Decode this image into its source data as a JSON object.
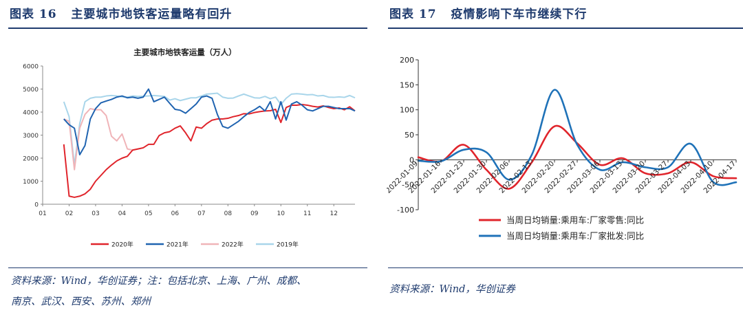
{
  "chart_data": [
    {
      "type": "line",
      "figure_label": "图表 16",
      "figure_title": "主要城市地铁客运量略有回升",
      "title": "主要城市地铁客运量（万人）",
      "xlabel": "",
      "ylabel": "",
      "x_ticks": [
        "01",
        "02",
        "03",
        "04",
        "05",
        "06",
        "07",
        "08",
        "09",
        "10",
        "11",
        "12"
      ],
      "y_ticks": [
        "0",
        "1000",
        "2000",
        "3000",
        "4000",
        "5000",
        "6000"
      ],
      "ylim": [
        0,
        6000
      ],
      "xlim": [
        1,
        12.8
      ],
      "legend_position": "bottom",
      "series": [
        {
          "name": "2020年",
          "color": "#e0242b",
          "x": [
            1.8,
            2.0,
            2.2,
            2.4,
            2.6,
            2.8,
            3.0,
            3.2,
            3.4,
            3.6,
            3.8,
            4.0,
            4.2,
            4.4,
            4.6,
            4.8,
            5.0,
            5.2,
            5.4,
            5.6,
            5.8,
            6.0,
            6.2,
            6.4,
            6.6,
            6.8,
            7.0,
            7.2,
            7.4,
            7.6,
            7.8,
            8.0,
            8.2,
            8.4,
            8.6,
            8.8,
            9.0,
            9.2,
            9.4,
            9.6,
            9.8,
            10.0,
            10.2,
            10.4,
            10.6,
            10.8,
            11.0,
            11.2,
            11.4,
            11.6,
            11.8,
            12.0,
            12.2,
            12.4,
            12.6,
            12.8
          ],
          "values": [
            2600,
            350,
            300,
            350,
            450,
            650,
            1000,
            1250,
            1500,
            1700,
            1880,
            2000,
            2080,
            2350,
            2400,
            2450,
            2600,
            2600,
            2980,
            3100,
            3150,
            3300,
            3400,
            3100,
            2750,
            3350,
            3300,
            3500,
            3650,
            3700,
            3700,
            3730,
            3800,
            3850,
            3930,
            3920,
            3980,
            4020,
            4050,
            4060,
            4120,
            3550,
            4200,
            4300,
            4300,
            4330,
            4300,
            4250,
            4220,
            4270,
            4200,
            4150,
            4180,
            4100,
            4230,
            4050
          ]
        },
        {
          "name": "2021年",
          "color": "#1f63b0",
          "x": [
            1.8,
            2.0,
            2.2,
            2.4,
            2.6,
            2.8,
            3.0,
            3.2,
            3.4,
            3.6,
            3.8,
            4.0,
            4.2,
            4.4,
            4.6,
            4.8,
            5.0,
            5.2,
            5.4,
            5.6,
            5.8,
            6.0,
            6.2,
            6.4,
            6.6,
            6.8,
            7.0,
            7.2,
            7.4,
            7.6,
            7.8,
            8.0,
            8.2,
            8.4,
            8.6,
            8.8,
            9.0,
            9.2,
            9.4,
            9.6,
            9.8,
            10.0,
            10.2,
            10.4,
            10.6,
            10.8,
            11.0,
            11.2,
            11.4,
            11.6,
            11.8,
            12.0,
            12.2,
            12.4,
            12.6,
            12.8
          ],
          "values": [
            3700,
            3450,
            3300,
            2150,
            2550,
            3700,
            4150,
            4400,
            4480,
            4550,
            4650,
            4700,
            4620,
            4650,
            4600,
            4650,
            5000,
            4450,
            4550,
            4650,
            4380,
            4120,
            4080,
            3950,
            4150,
            4350,
            4650,
            4700,
            4600,
            3900,
            3380,
            3300,
            3450,
            3600,
            3800,
            3980,
            4100,
            4250,
            4050,
            4450,
            3700,
            4450,
            3650,
            4350,
            4450,
            4300,
            4100,
            4050,
            4150,
            4250,
            4250,
            4200,
            4150,
            4150,
            4150,
            4050
          ]
        },
        {
          "name": "2022年",
          "color": "#f0b4b8",
          "x": [
            1.8,
            2.0,
            2.2,
            2.4,
            2.6,
            2.8,
            3.0,
            3.2,
            3.4,
            3.6,
            3.8,
            4.0,
            4.2,
            4.4,
            4.6,
            4.8
          ],
          "values": [
            3700,
            3600,
            1500,
            3300,
            3900,
            4150,
            4100,
            4100,
            3850,
            2950,
            2750,
            3050,
            2400,
            2350,
            2400,
            2450
          ]
        },
        {
          "name": "2019年",
          "color": "#a8d5ea",
          "x": [
            1.8,
            2.0,
            2.2,
            2.4,
            2.6,
            2.8,
            3.0,
            3.2,
            3.4,
            3.6,
            3.8,
            4.0,
            4.2,
            4.4,
            4.6,
            4.8,
            5.0,
            5.2,
            5.4,
            5.6,
            5.8,
            6.0,
            6.2,
            6.4,
            6.6,
            6.8,
            7.0,
            7.2,
            7.4,
            7.6,
            7.8,
            8.0,
            8.2,
            8.4,
            8.6,
            8.8,
            9.0,
            9.2,
            9.4,
            9.6,
            9.8,
            10.0,
            10.2,
            10.4,
            10.6,
            10.8,
            11.0,
            11.2,
            11.4,
            11.6,
            11.8,
            12.0,
            12.2,
            12.4,
            12.6,
            12.8
          ],
          "values": [
            4450,
            3800,
            1700,
            3500,
            4450,
            4600,
            4650,
            4650,
            4700,
            4720,
            4700,
            4660,
            4650,
            4700,
            4680,
            4690,
            4700,
            4720,
            4700,
            4680,
            4520,
            4580,
            4500,
            4560,
            4620,
            4620,
            4700,
            4780,
            4800,
            4820,
            4650,
            4600,
            4610,
            4700,
            4780,
            4700,
            4620,
            4610,
            4680,
            4580,
            4650,
            4330,
            4600,
            4780,
            4800,
            4780,
            4750,
            4760,
            4700,
            4720,
            4650,
            4640,
            4660,
            4640,
            4720,
            4620
          ]
        }
      ]
    },
    {
      "type": "line",
      "figure_label": "图表 17",
      "figure_title": "疫情影响下车市继续下行",
      "title": "",
      "xlabel": "",
      "ylabel": "",
      "categories": [
        "2022-01-09",
        "2022-01-16",
        "2022-01-23",
        "2022-01-30",
        "2022-02-06",
        "2022-02-13",
        "2022-02-20",
        "2022-02-27",
        "2022-03-06",
        "2022-03-13",
        "2022-03-20",
        "2022-03-27",
        "2022-04-03",
        "2022-04-10",
        "2022-04-17"
      ],
      "y_ticks": [
        "-100",
        "-50",
        "0",
        "50",
        "100",
        "150",
        "200"
      ],
      "ylim": [
        -100,
        200
      ],
      "legend_position": "bottom",
      "series": [
        {
          "name": "当周日均销量:乘用车:厂家零售:同比",
          "color": "#e0242b",
          "values": [
            5,
            -3,
            30,
            -20,
            -58,
            -5,
            67,
            33,
            -10,
            3,
            -27,
            -27,
            -5,
            -33,
            -37
          ]
        },
        {
          "name": "当周日均销量:乘用车:厂家批发:同比",
          "color": "#1f72b8",
          "values": [
            -2,
            -3,
            20,
            15,
            -40,
            10,
            140,
            30,
            -20,
            -5,
            -15,
            -15,
            32,
            -45,
            -45
          ]
        }
      ]
    }
  ],
  "left": {
    "label": "图表 16",
    "title": "主要城市地铁客运量略有回升",
    "source_line1": "资料来源：Wind，华创证券；注：包括北京、上海、广州、成都、",
    "source_line2": "南京、武汉、西安、苏州、郑州"
  },
  "right": {
    "label": "图表 17",
    "title": "疫情影响下车市继续下行",
    "source": "资料来源：Wind，华创证券"
  }
}
